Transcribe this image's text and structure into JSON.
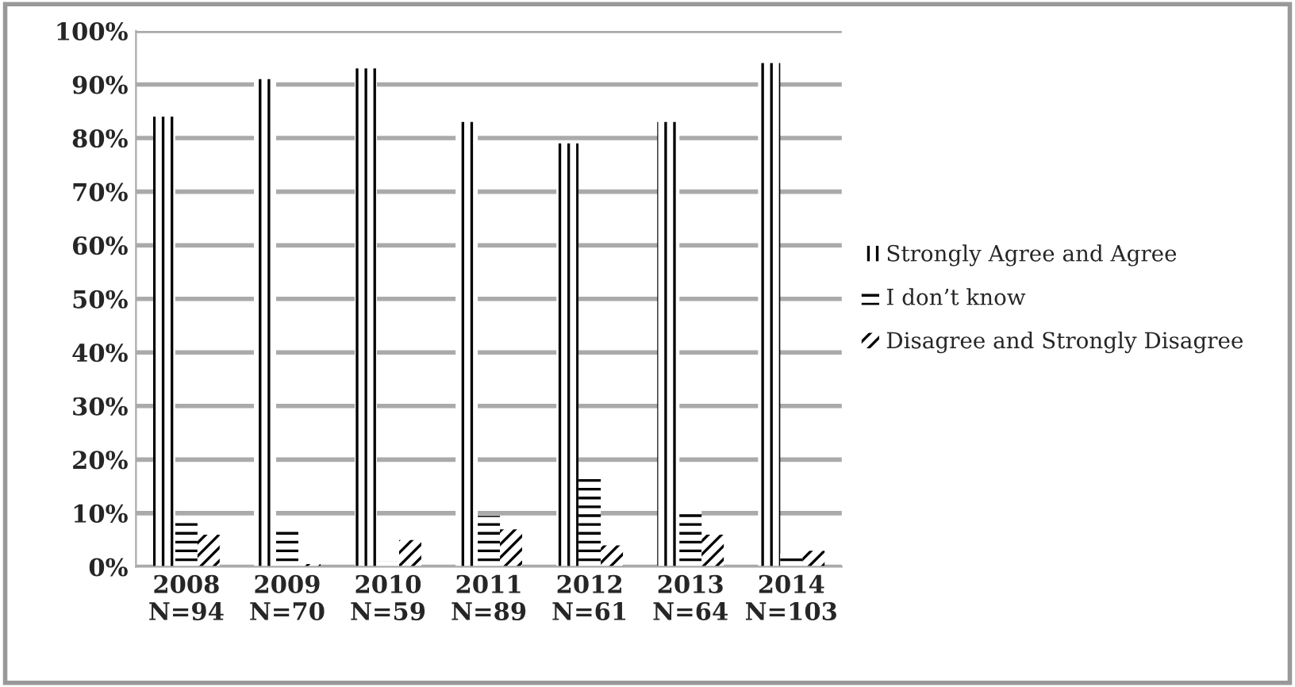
{
  "chart_data": {
    "type": "bar",
    "categories": [
      "2008\nN=94",
      "2009\nN=70",
      "2010\nN=59",
      "2011\nN=89",
      "2012\nN=61",
      "2013\nN=64",
      "2014\nN=103"
    ],
    "series": [
      {
        "name": "Strongly Agree and Agree",
        "color": "#000000",
        "values": [
          84,
          91,
          93,
          83,
          79,
          83,
          94
        ]
      },
      {
        "name": "I don’t know",
        "color": "#000000",
        "values": [
          8.5,
          7,
          1,
          9.5,
          16.5,
          10.5,
          2.5
        ]
      },
      {
        "name": "Disagree and Strongly Disagree",
        "color": "#000000",
        "values": [
          6,
          0.5,
          5,
          7,
          4,
          6,
          3
        ]
      }
    ],
    "ylim": [
      0,
      100
    ],
    "yticks": [
      {
        "value": 0,
        "label": "0%"
      },
      {
        "value": 10,
        "label": "10%"
      },
      {
        "value": 20,
        "label": "20%"
      },
      {
        "value": 30,
        "label": "30%"
      },
      {
        "value": 40,
        "label": "40%"
      },
      {
        "value": 50,
        "label": "50%"
      },
      {
        "value": 60,
        "label": "60%"
      },
      {
        "value": 70,
        "label": "70%"
      },
      {
        "value": 80,
        "label": "80%"
      },
      {
        "value": 90,
        "label": "90%"
      },
      {
        "value": 100,
        "label": "100%"
      }
    ],
    "grid": "y",
    "legend": "right"
  }
}
